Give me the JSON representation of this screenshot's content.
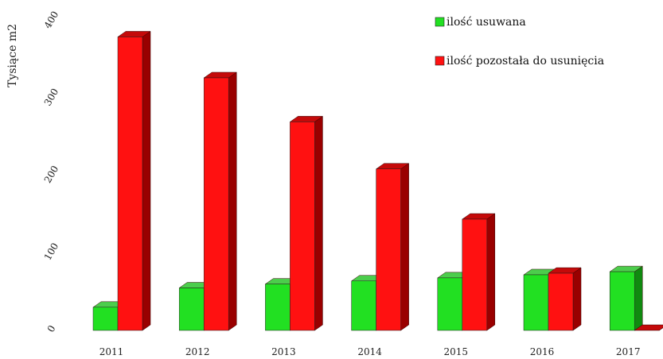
{
  "chart_data": {
    "type": "bar",
    "title": "",
    "ylabel": "Tysiące m2",
    "xlabel": "",
    "categories": [
      "2011",
      "2012",
      "2013",
      "2014",
      "2015",
      "2016",
      "2017"
    ],
    "series": [
      {
        "name": "ilość usuwana",
        "color": "#22e022",
        "side_color": "#108a10",
        "top_color": "#4ccd4c",
        "values": [
          30,
          55,
          60,
          64,
          68,
          72,
          76
        ]
      },
      {
        "name": "ilość pozostała do usunięcia",
        "color": "#ff1111",
        "side_color": "#990000",
        "top_color": "#c40a0a",
        "values": [
          380,
          327,
          270,
          209,
          144,
          74,
          0
        ]
      }
    ],
    "ylim": [
      0,
      400
    ],
    "yticks": [
      0,
      100,
      200,
      300,
      400
    ],
    "grid": false,
    "legend_position": "top-right",
    "style": "3d-bar"
  }
}
